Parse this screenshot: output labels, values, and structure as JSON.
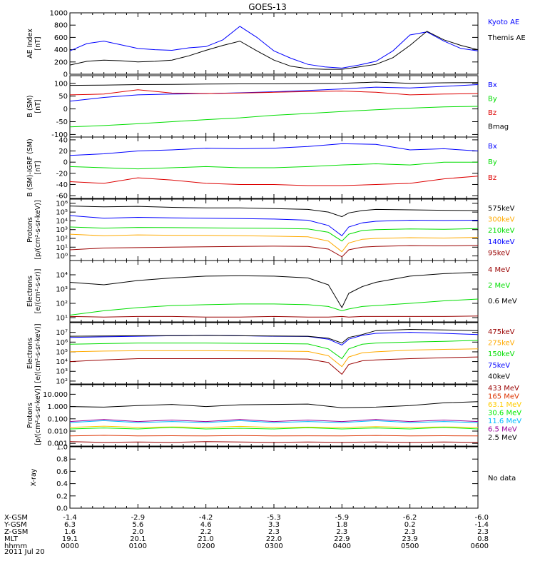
{
  "title": "GOES-13",
  "date_label": "2011 Jul 20",
  "orbit_table": {
    "rows": [
      {
        "label": "X-GSM",
        "values": [
          "-1.4",
          "-2.9",
          "-4.2",
          "-5.3",
          "-5.9",
          "-6.2",
          "-6.0"
        ]
      },
      {
        "label": "Y-GSM",
        "values": [
          "6.3",
          "5.6",
          "4.6",
          "3.3",
          "1.8",
          "0.2",
          "-1.4"
        ]
      },
      {
        "label": "Z-GSM",
        "values": [
          "1.6",
          "2.0",
          "2.2",
          "2.3",
          "2.3",
          "2.3",
          "2.3"
        ]
      },
      {
        "label": "MLT",
        "values": [
          "19.1",
          "20.1",
          "21.0",
          "22.0",
          "22.9",
          "23.9",
          "0.8"
        ]
      },
      {
        "label": "hhmm",
        "values": [
          "0000",
          "0100",
          "0200",
          "0300",
          "0400",
          "0500",
          "0600"
        ]
      }
    ]
  },
  "chart_data": [
    {
      "type": "line",
      "id": "ae",
      "ylabel": "AE Index\n[nT]",
      "ylim": [
        0,
        1000
      ],
      "scale": "linear",
      "yticks": [
        0,
        200,
        400,
        600,
        800,
        1000
      ],
      "yticklabels": [
        "0",
        "200",
        "400",
        "600",
        "800",
        "1000"
      ],
      "x": [
        0,
        0.25,
        0.5,
        0.75,
        1,
        1.25,
        1.5,
        1.75,
        2,
        2.25,
        2.5,
        2.75,
        3,
        3.25,
        3.5,
        3.75,
        4,
        4.25,
        4.5,
        4.75,
        5,
        5.25,
        5.5,
        5.75,
        6
      ],
      "series": [
        {
          "name": "Kyoto AE",
          "color": "#0000ff",
          "values": [
            380,
            500,
            540,
            480,
            420,
            400,
            390,
            430,
            450,
            560,
            780,
            600,
            380,
            260,
            160,
            120,
            100,
            150,
            210,
            380,
            640,
            690,
            540,
            420,
            380
          ]
        },
        {
          "name": "Themis AE",
          "color": "#000000",
          "values": [
            150,
            210,
            230,
            220,
            200,
            210,
            230,
            300,
            390,
            470,
            540,
            380,
            230,
            130,
            90,
            80,
            80,
            120,
            160,
            270,
            470,
            700,
            560,
            470,
            400
          ]
        }
      ]
    },
    {
      "type": "line",
      "id": "bsm",
      "ylabel": "B (SM)\n[nT]",
      "ylim": [
        -110,
        130
      ],
      "scale": "linear",
      "yticks": [
        -100,
        -50,
        0,
        50,
        100
      ],
      "yticklabels": [
        "-100",
        "-50",
        "0",
        "50",
        "100"
      ],
      "x": [
        0,
        0.5,
        1,
        1.5,
        2,
        2.5,
        3,
        3.5,
        4,
        4.5,
        5,
        5.5,
        6
      ],
      "series": [
        {
          "name": "Bx",
          "color": "#0000ff",
          "values": [
            30,
            45,
            55,
            58,
            60,
            63,
            67,
            72,
            78,
            85,
            82,
            88,
            95
          ]
        },
        {
          "name": "By",
          "color": "#00dd00",
          "values": [
            -70,
            -65,
            -58,
            -50,
            -42,
            -35,
            -25,
            -18,
            -10,
            -3,
            3,
            8,
            10
          ]
        },
        {
          "name": "Bz",
          "color": "#dd0000",
          "values": [
            55,
            58,
            75,
            62,
            60,
            62,
            65,
            68,
            70,
            65,
            55,
            58,
            60
          ]
        },
        {
          "name": "Bmag",
          "color": "#000000",
          "values": [
            92,
            93,
            95,
            96,
            97,
            98,
            98,
            99,
            100,
            105,
            100,
            102,
            103
          ]
        }
      ]
    },
    {
      "type": "line",
      "id": "bsm_igrf",
      "ylabel": "B (SM)-IGRF (SM)\n[nT]",
      "ylim": [
        -65,
        45
      ],
      "scale": "linear",
      "yticks": [
        -60,
        -40,
        -20,
        0,
        20,
        40
      ],
      "yticklabels": [
        "-60",
        "-40",
        "-20",
        "0",
        "20",
        "40"
      ],
      "x": [
        0,
        0.5,
        1,
        1.5,
        2,
        2.5,
        3,
        3.5,
        4,
        4.5,
        5,
        5.5,
        6
      ],
      "series": [
        {
          "name": "Bx",
          "color": "#0000ff",
          "values": [
            12,
            15,
            20,
            22,
            25,
            24,
            25,
            28,
            33,
            32,
            22,
            24,
            20
          ]
        },
        {
          "name": "By",
          "color": "#00dd00",
          "values": [
            -8,
            -10,
            -12,
            -10,
            -8,
            -10,
            -10,
            -8,
            -5,
            -3,
            -5,
            0,
            0
          ]
        },
        {
          "name": "Bz",
          "color": "#dd0000",
          "values": [
            -35,
            -38,
            -28,
            -32,
            -38,
            -40,
            -40,
            -42,
            -42,
            -40,
            -38,
            -30,
            -25
          ]
        }
      ]
    },
    {
      "type": "line",
      "id": "protons_low",
      "ylabel": "Protons\n[p/(cm²-s-sr-keV)]",
      "ylim": [
        0.3,
        3000000
      ],
      "scale": "log",
      "yticks": [
        1,
        10,
        100,
        1000,
        10000,
        100000,
        1000000
      ],
      "yticklabels": [
        "10⁰",
        "10¹",
        "10²",
        "10³",
        "10⁴",
        "10⁵",
        "10⁶"
      ],
      "x": [
        0,
        0.5,
        1,
        1.5,
        2,
        2.5,
        3,
        3.5,
        3.8,
        4,
        4.1,
        4.3,
        4.5,
        5,
        5.5,
        6
      ],
      "series": [
        {
          "name": "575keV",
          "color": "#000000",
          "values": [
            500000,
            400000,
            450000,
            350000,
            300000,
            300000,
            250000,
            200000,
            100000,
            30000,
            80000,
            150000,
            200000,
            180000,
            160000,
            150000
          ]
        },
        {
          "name": "300keV",
          "color": "#ffaa00",
          "values": [
            300,
            200,
            250,
            230,
            220,
            200,
            180,
            150,
            50,
            3,
            30,
            80,
            100,
            120,
            110,
            130
          ]
        },
        {
          "name": "210keV",
          "color": "#00dd00",
          "values": [
            2000,
            1500,
            1800,
            1700,
            1600,
            1500,
            1400,
            1200,
            500,
            50,
            300,
            800,
            1000,
            1200,
            1100,
            1300
          ]
        },
        {
          "name": "140keV",
          "color": "#0000ff",
          "values": [
            40000,
            20000,
            25000,
            22000,
            20000,
            18000,
            16000,
            12000,
            3000,
            200,
            2000,
            6000,
            9000,
            12000,
            11000,
            12000
          ]
        },
        {
          "name": "95keV",
          "color": "#990000",
          "values": [
            5,
            8,
            9,
            10,
            11,
            12,
            13,
            12,
            6,
            0.8,
            5,
            10,
            12,
            15,
            14,
            16
          ]
        }
      ]
    },
    {
      "type": "line",
      "id": "electrons_mev",
      "ylabel": "Electrons\n[e/(cm²-s-sr)]",
      "ylim": [
        5,
        100000
      ],
      "scale": "log",
      "yticks": [
        10,
        100,
        1000,
        10000
      ],
      "yticklabels": [
        "10¹",
        "10²",
        "10³",
        "10⁴"
      ],
      "x": [
        0,
        0.5,
        1,
        1.5,
        2,
        2.5,
        3,
        3.5,
        3.8,
        4,
        4.1,
        4.3,
        4.5,
        5,
        5.5,
        6
      ],
      "series": [
        {
          "name": "4 MeV",
          "color": "#990000",
          "values": [
            12,
            11,
            12,
            12,
            11,
            11,
            12,
            11,
            11,
            12,
            11,
            12,
            12,
            12,
            12,
            13
          ]
        },
        {
          "name": "2 MeV",
          "color": "#00dd00",
          "values": [
            15,
            30,
            50,
            70,
            80,
            90,
            90,
            80,
            60,
            30,
            40,
            60,
            70,
            100,
            150,
            200
          ]
        },
        {
          "name": "0.6 MeV",
          "color": "#000000",
          "values": [
            3000,
            2000,
            4000,
            6000,
            8000,
            8500,
            8000,
            6000,
            2000,
            50,
            500,
            1500,
            3000,
            8000,
            12000,
            15000
          ]
        }
      ]
    },
    {
      "type": "line",
      "id": "electrons_kev",
      "ylabel": "Electrons\n[e/(cm²-s-sr-keV)]",
      "ylim": [
        50,
        100000000
      ],
      "scale": "log",
      "yticks": [
        100,
        1000,
        10000,
        100000,
        1000000,
        10000000
      ],
      "yticklabels": [
        "10²",
        "10³",
        "10⁴",
        "10⁵",
        "10⁶",
        "10⁷"
      ],
      "x": [
        0,
        0.5,
        1,
        1.5,
        2,
        2.5,
        3,
        3.5,
        3.8,
        4,
        4.1,
        4.3,
        4.5,
        5,
        5.5,
        6
      ],
      "series": [
        {
          "name": "475keV",
          "color": "#990000",
          "values": [
            10000,
            15000,
            20000,
            20000,
            20000,
            20000,
            20000,
            18000,
            8000,
            500,
            5000,
            12000,
            15000,
            20000,
            25000,
            30000
          ]
        },
        {
          "name": "275keV",
          "color": "#ffaa00",
          "values": [
            100000,
            120000,
            130000,
            130000,
            130000,
            125000,
            120000,
            110000,
            40000,
            3000,
            30000,
            80000,
            100000,
            150000,
            180000,
            200000
          ]
        },
        {
          "name": "150keV",
          "color": "#00dd00",
          "values": [
            600000,
            700000,
            800000,
            800000,
            800000,
            750000,
            700000,
            650000,
            200000,
            20000,
            200000,
            600000,
            800000,
            1000000,
            1200000,
            1500000
          ]
        },
        {
          "name": "75keV",
          "color": "#0000ff",
          "values": [
            3000000,
            3500000,
            4000000,
            4500000,
            5000000,
            4500000,
            4000000,
            3800000,
            2000000,
            500000,
            2000000,
            5000000,
            8000000,
            10000000,
            8000000,
            6000000
          ]
        },
        {
          "name": "40keV",
          "color": "#000000",
          "values": [
            4000000,
            4200000,
            4500000,
            4600000,
            4800000,
            4500000,
            4200000,
            4000000,
            2500000,
            800000,
            3000000,
            6000000,
            15000000,
            20000000,
            18000000,
            15000000
          ]
        }
      ]
    },
    {
      "type": "line",
      "id": "protons_high",
      "ylabel": "Protons\n[p/(cm²-s-sr-keV)]",
      "ylim": [
        0.0006,
        60
      ],
      "scale": "log",
      "yticks": [
        0.001,
        0.01,
        0.1,
        1,
        10
      ],
      "yticklabels": [
        "0.001",
        "0.010",
        "0.100",
        "1.000",
        "10.000"
      ],
      "x": [
        0,
        0.5,
        1,
        1.5,
        2,
        2.5,
        3,
        3.5,
        4,
        4.5,
        5,
        5.5,
        6
      ],
      "series": [
        {
          "name": "433 MeV",
          "color": "#990000",
          "values": [
            0.0014,
            0.0012,
            0.0013,
            0.0012,
            0.0014,
            0.0013,
            0.0012,
            0.0013,
            0.0012,
            0.0013,
            0.0012,
            0.0013,
            0.0012
          ]
        },
        {
          "name": "165 MeV",
          "color": "#dd3300",
          "values": [
            0.004,
            0.0045,
            0.004,
            0.0042,
            0.004,
            0.0043,
            0.004,
            0.0041,
            0.004,
            0.0044,
            0.004,
            0.0042,
            0.004
          ]
        },
        {
          "name": "63.1 MeV",
          "color": "#ffcc00",
          "values": [
            0.02,
            0.025,
            0.02,
            0.022,
            0.02,
            0.024,
            0.02,
            0.021,
            0.02,
            0.023,
            0.02,
            0.022,
            0.02
          ]
        },
        {
          "name": "30.6 MeV",
          "color": "#00ee00",
          "values": [
            0.015,
            0.018,
            0.015,
            0.02,
            0.015,
            0.017,
            0.015,
            0.019,
            0.015,
            0.018,
            0.015,
            0.02,
            0.015
          ]
        },
        {
          "name": "11.6 MeV",
          "color": "#00bbff",
          "values": [
            0.05,
            0.07,
            0.05,
            0.06,
            0.05,
            0.07,
            0.05,
            0.06,
            0.05,
            0.07,
            0.05,
            0.06,
            0.05
          ]
        },
        {
          "name": "6.5 MeV",
          "color": "#990099",
          "values": [
            0.06,
            0.09,
            0.06,
            0.08,
            0.06,
            0.09,
            0.06,
            0.08,
            0.06,
            0.09,
            0.06,
            0.08,
            0.06
          ]
        },
        {
          "name": "2.5 MeV",
          "color": "#000000",
          "values": [
            1.0,
            0.9,
            1.2,
            1.5,
            1.0,
            1.4,
            1.5,
            1.6,
            0.8,
            0.9,
            1.2,
            2.0,
            2.5
          ]
        }
      ]
    },
    {
      "type": "line",
      "id": "xray",
      "ylabel": "X-ray",
      "ylim": [
        0,
        1
      ],
      "scale": "linear",
      "yticks": [
        0,
        0.2,
        0.4,
        0.6,
        0.8,
        1.0
      ],
      "yticklabels": [
        "0.0",
        "0.2",
        "0.4",
        "0.6",
        "0.8",
        "1.0"
      ],
      "x": [],
      "series": [],
      "note": "No data"
    }
  ]
}
